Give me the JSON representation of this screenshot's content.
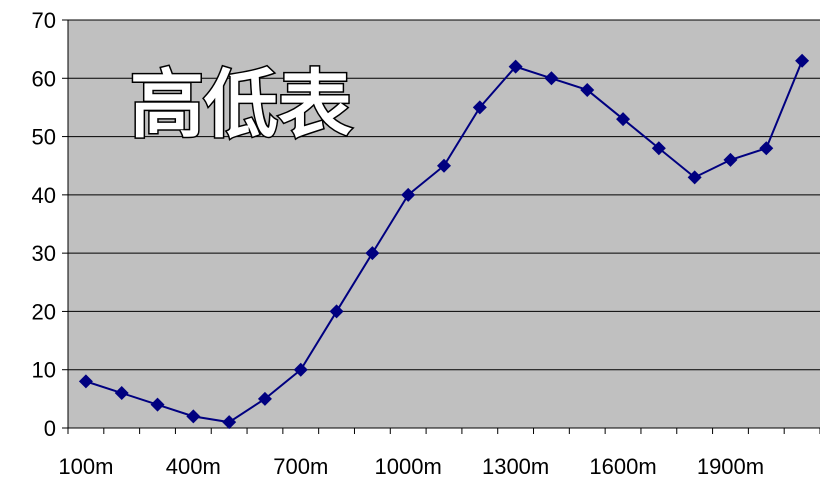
{
  "chart_data": {
    "type": "line",
    "title": "高低表",
    "xlabel": "",
    "ylabel": "",
    "x": [
      "100m",
      "200m",
      "300m",
      "400m",
      "500m",
      "600m",
      "700m",
      "800m",
      "900m",
      "1000m",
      "1100m",
      "1200m",
      "1300m",
      "1400m",
      "1500m",
      "1600m",
      "1700m",
      "1800m",
      "1900m",
      "2000m",
      "2100m"
    ],
    "x_tick_labels": [
      "100m",
      "400m",
      "700m",
      "1000m",
      "1300m",
      "1600m",
      "1900m"
    ],
    "series": [
      {
        "values": [
          8,
          6,
          4,
          2,
          1,
          5,
          10,
          20,
          30,
          40,
          45,
          55,
          62,
          60,
          58,
          53,
          48,
          43,
          46,
          48,
          63
        ]
      }
    ],
    "ylim": [
      0,
      70
    ],
    "y_ticks": [
      "0",
      "10",
      "20",
      "30",
      "40",
      "50",
      "60",
      "70"
    ],
    "grid": true,
    "colors": {
      "plot_background": "#c0c0c0",
      "series_line": "#000080",
      "gridline": "#000000"
    }
  }
}
